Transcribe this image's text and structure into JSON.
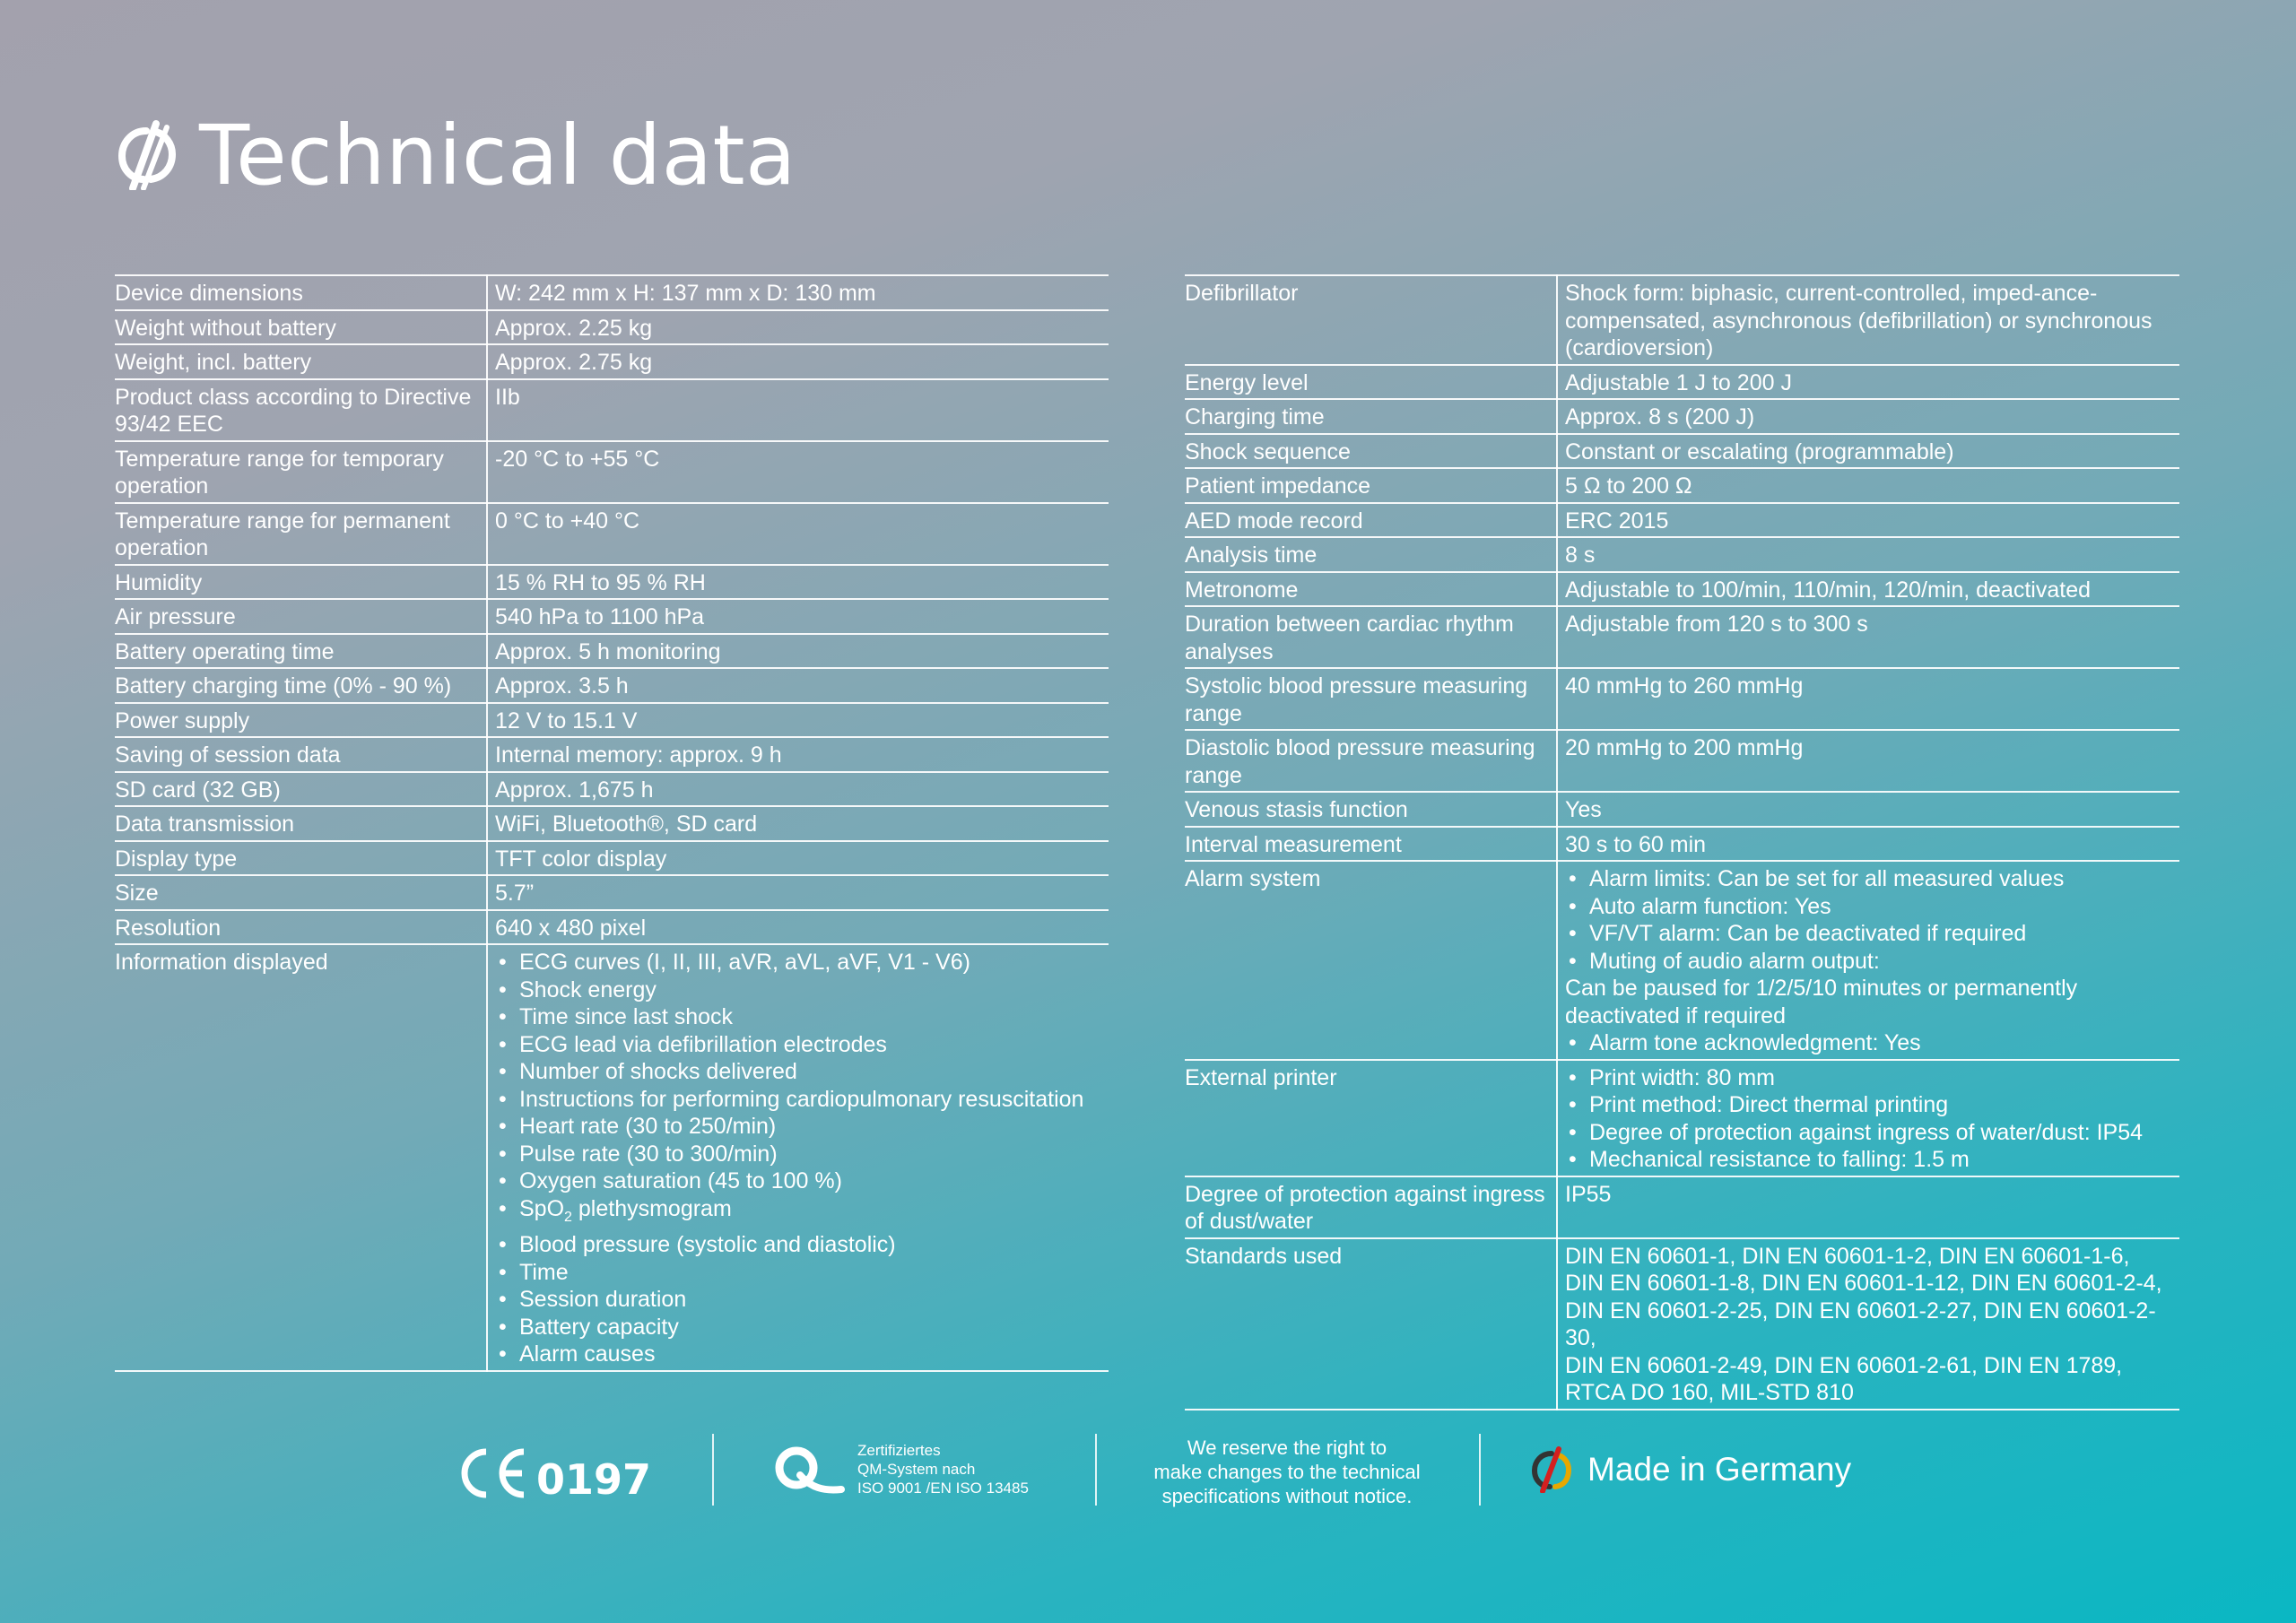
{
  "page": {
    "title": "Technical data",
    "accent_color": "#ffffff",
    "logo_icon": "brand-mark-icon"
  },
  "left_table": [
    {
      "label": "Device dimensions",
      "value": "W: 242 mm x H: 137 mm x D: 130 mm"
    },
    {
      "label": "Weight without battery",
      "value": "Approx. 2.25 kg"
    },
    {
      "label": "Weight, incl. battery",
      "value": "Approx. 2.75 kg"
    },
    {
      "label": "Product class according to Directive 93/42 EEC",
      "value": "IIb"
    },
    {
      "label": "Temperature range for temporary operation",
      "value": "-20 °C to +55 °C"
    },
    {
      "label": "Temperature range for permanent operation",
      "value": "0 °C to +40 °C"
    },
    {
      "label": "Humidity",
      "value": "15 % RH to 95 % RH"
    },
    {
      "label": "Air pressure",
      "value": "540 hPa to 1100 hPa"
    },
    {
      "label": "Battery operating time",
      "value": "Approx. 5 h monitoring"
    },
    {
      "label": "Battery charging time (0% - 90 %)",
      "value": "Approx. 3.5 h"
    },
    {
      "label": "Power supply",
      "value": "12 V to 15.1 V"
    },
    {
      "label": "Saving of session data",
      "value": "Internal memory: approx. 9 h"
    },
    {
      "label": "SD card (32 GB)",
      "value": "Approx. 1,675 h"
    },
    {
      "label": "Data transmission",
      "value": "WiFi, Bluetooth®, SD card"
    },
    {
      "label": "Display type",
      "value": "TFT color display"
    },
    {
      "label": "Size",
      "value": "5.7”"
    },
    {
      "label": "Resolution",
      "value": "640 x 480 pixel"
    }
  ],
  "info_displayed": {
    "label": "Information displayed",
    "items": [
      "ECG curves (I, II, III, aVR, aVL, aVF, V1 - V6)",
      "Shock energy",
      "Time since last shock",
      "ECG lead via defibrillation electrodes",
      "Number of shocks delivered",
      "Instructions for performing cardiopulmonary resuscitation",
      "Heart rate (30 to 250/min)",
      "Pulse rate (30 to 300/min)",
      "Oxygen saturation (45 to 100 %)",
      "SpO2 plethysmogram",
      "Blood pressure (systolic and diastolic)",
      "Time",
      "Session duration",
      "Battery capacity",
      "Alarm causes"
    ]
  },
  "right_table_a": [
    {
      "label": "Defibrillator",
      "value": "Shock form: biphasic, current-controlled, imped-ance-compensated, asynchronous (defibrillation) or synchronous (cardioversion)"
    },
    {
      "label": "Energy level",
      "value": "Adjustable 1 J to 200 J"
    },
    {
      "label": "Charging time",
      "value": "Approx. 8 s (200 J)"
    },
    {
      "label": "Shock sequence",
      "value": "Constant or escalating (programmable)"
    },
    {
      "label": "Patient impedance",
      "value": "5 Ω to 200 Ω"
    },
    {
      "label": "AED mode record",
      "value": "ERC 2015"
    },
    {
      "label": "Analysis time",
      "value": "8 s"
    },
    {
      "label": "Metronome",
      "value": "Adjustable to 100/min, 110/min, 120/min, deactivated"
    },
    {
      "label": "Duration between cardiac rhythm analyses",
      "value": "Adjustable from 120 s to 300 s"
    },
    {
      "label": "Systolic blood pressure measuring range",
      "value": "40 mmHg to 260 mmHg"
    },
    {
      "label": "Diastolic blood pressure measuring range",
      "value": "20 mmHg to 200 mmHg"
    },
    {
      "label": "Venous stasis function",
      "value": "Yes"
    },
    {
      "label": "Interval measurement",
      "value": "30 s to 60 min"
    }
  ],
  "alarm_system": {
    "label": "Alarm system",
    "items": [
      "Alarm limits: Can be set for all measured values",
      "Auto alarm function: Yes",
      "VF/VT alarm: Can be deactivated if required",
      "Muting of audio alarm output:"
    ],
    "note": "Can be paused for 1/2/5/10 minutes or permanently deactivated if required",
    "last_item": "Alarm tone acknowledgment: Yes"
  },
  "external_printer": {
    "label": "External printer",
    "items": [
      "Print width: 80 mm",
      "Print method: Direct thermal printing",
      "Degree of protection against ingress of water/dust: IP54",
      "Mechanical resistance to falling: 1.5 m"
    ]
  },
  "right_table_b": [
    {
      "label": "Degree of protection against ingress of dust/water",
      "value": "IP55"
    },
    {
      "label": "Standards used",
      "value": "DIN EN 60601-1, DIN EN 60601-1-2, DIN EN 60601-1-6, DIN EN 60601-1-8, DIN EN 60601-1-12, DIN EN 60601-2-4, DIN EN 60601-2-25, DIN EN 60601-2-27, DIN EN 60601-2-30,",
      "value2": "DIN EN 60601-2-49, DIN EN 60601-2-61, DIN EN 1789, RTCA DO 160, MIL-STD 810"
    }
  ],
  "footer": {
    "ce_number": "0197",
    "qm_line1": "Zertifiziertes",
    "qm_line2": "QM-System nach",
    "qm_line3": "ISO 9001 /EN ISO 13485",
    "notice_line1": "We reserve the right to",
    "notice_line2": "make changes to the technical",
    "notice_line3": "specifications without notice.",
    "made_in": "Made in Germany"
  }
}
